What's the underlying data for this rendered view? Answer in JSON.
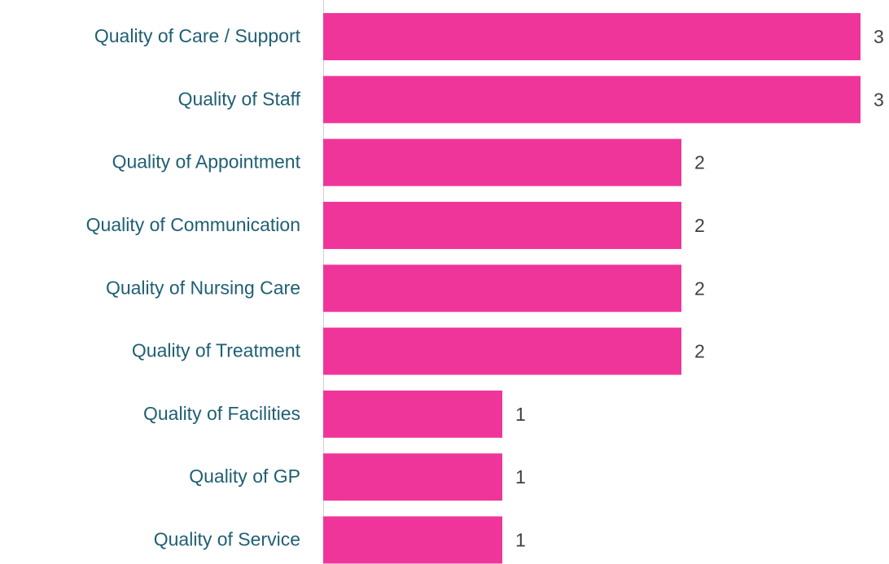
{
  "chart_data": {
    "type": "bar",
    "orientation": "horizontal",
    "categories": [
      "Quality of Care / Support",
      "Quality of Staff",
      "Quality of Appointment",
      "Quality of Communication",
      "Quality of Nursing Care",
      "Quality of Treatment",
      "Quality of Facilities",
      "Quality of GP",
      "Quality of Service"
    ],
    "values": [
      3,
      3,
      2,
      2,
      2,
      2,
      1,
      1,
      1
    ],
    "color": "#f0359a",
    "xlim": [
      0,
      3
    ]
  }
}
